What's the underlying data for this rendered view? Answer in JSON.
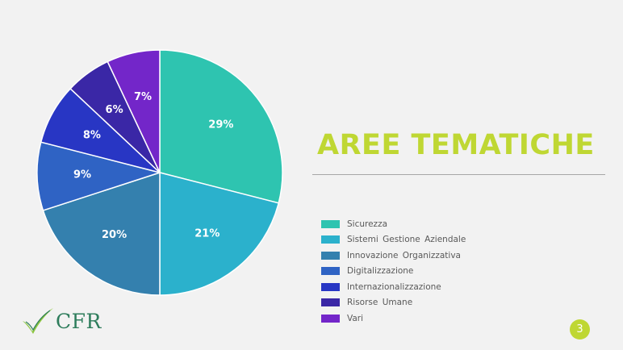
{
  "title": "AREE TEMATICHE",
  "page_number": "3",
  "logo": {
    "text": "CFR"
  },
  "colors": {
    "title": "#bfd733",
    "page_badge": "#bfd733",
    "slice_divider": "#ffffff"
  },
  "chart_data": {
    "type": "pie",
    "title": "",
    "legend_position": "right",
    "start_angle": "12 o'clock",
    "direction": "clockwise",
    "slices": [
      {
        "name": "Sicurezza",
        "value": 29,
        "label": "29%",
        "color": "#2ec4b0"
      },
      {
        "name": "Sistemi  Gestione  Aziendale",
        "value": 21,
        "label": "21%",
        "color": "#2bb1cc"
      },
      {
        "name": "Innovazione  Organizzativa",
        "value": 20,
        "label": "20%",
        "color": "#3480ae"
      },
      {
        "name": "Digitalizzazione",
        "value": 9,
        "label": "9%",
        "color": "#2f63c4"
      },
      {
        "name": "Internazionalizzazione",
        "value": 8,
        "label": "8%",
        "color": "#2836c4"
      },
      {
        "name": "Risorse  Umane",
        "value": 6,
        "label": "6%",
        "color": "#3a27a6"
      },
      {
        "name": "Vari",
        "value": 7,
        "label": "7%",
        "color": "#7326c9"
      }
    ]
  }
}
